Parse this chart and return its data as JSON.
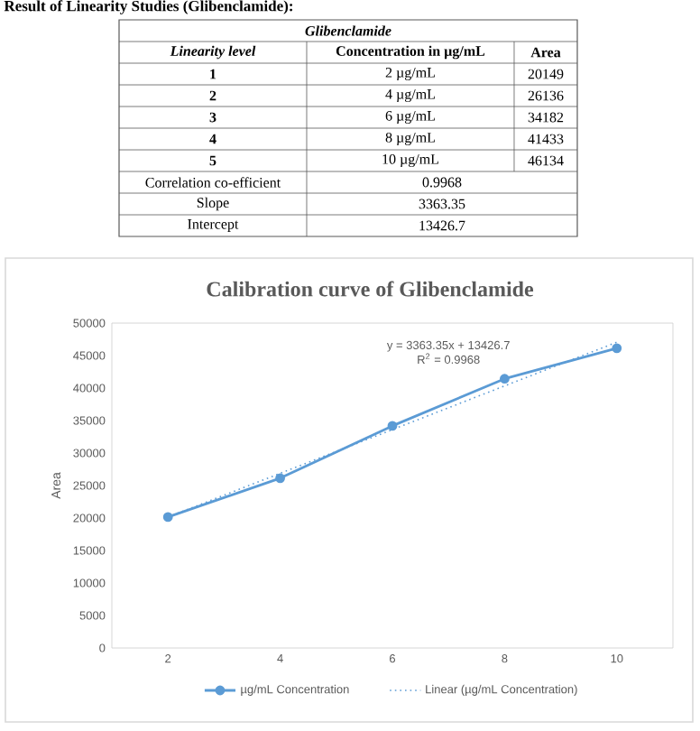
{
  "chart_data": {
    "type": "line",
    "title": "Calibration curve of Glibenclamide",
    "ylabel": "Area",
    "x": [
      2,
      4,
      6,
      8,
      10
    ],
    "xlim": [
      1,
      11
    ],
    "xticks": [
      2,
      4,
      6,
      8,
      10
    ],
    "ylim": [
      0,
      50000
    ],
    "yticks": [
      0,
      5000,
      10000,
      15000,
      20000,
      25000,
      30000,
      35000,
      40000,
      45000,
      50000
    ],
    "series": [
      {
        "name": "µg/mL Concentration",
        "color": "#5b9bd5",
        "values": [
          20149,
          26136,
          34182,
          41433,
          46134
        ],
        "marker": "circle",
        "line_style": "solid"
      },
      {
        "name": "Linear (µg/mL Concentration)",
        "color": "#5b9bd5",
        "type": "line",
        "x": [
          2,
          10
        ],
        "values": [
          20153,
          47060
        ],
        "marker": "none",
        "line_style": "dotted"
      }
    ],
    "legend": "bottom",
    "grid": false,
    "annotations": [
      "Result of Linearity Studies (Glibenclamide):",
      "Glibenclamide",
      "Linearity level",
      "Concentration in µg/mL",
      "Area",
      "1",
      "2",
      "3",
      "4",
      "5",
      "2 µg/mL",
      "4 µg/mL",
      "6 µg/mL",
      "8 µg/mL",
      "10 µg/mL",
      "20149",
      "26136",
      "34182",
      "41433",
      "46134",
      "Correlation co-efficient",
      "0.9968",
      "Slope",
      "3363.35",
      "Intercept",
      "13426.7",
      "y = 3363.35x + 13426.7",
      "R$^{2}$ = 0.9968"
    ]
  }
}
